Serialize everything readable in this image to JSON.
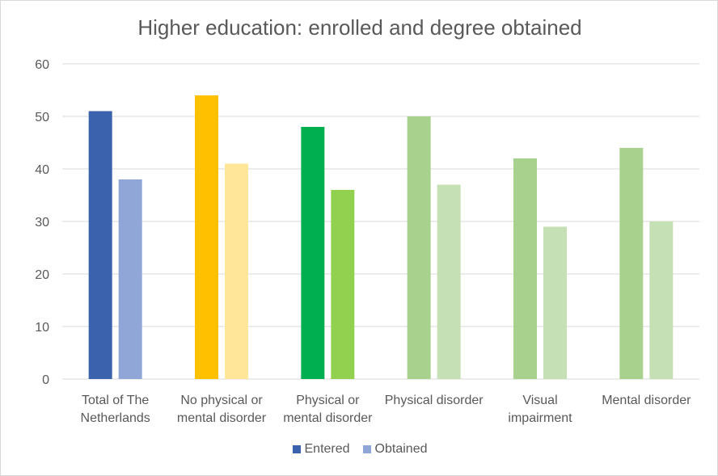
{
  "chart_data": {
    "type": "bar",
    "title": "Higher education: enrolled and degree obtained",
    "xlabel": "",
    "ylabel": "",
    "ylim": [
      0,
      60
    ],
    "yticks": [
      0,
      10,
      20,
      30,
      40,
      50,
      60
    ],
    "grid": true,
    "legend_position": "bottom",
    "categories": [
      [
        "Total of The",
        "Netherlands"
      ],
      [
        "No physical or",
        "mental disorder"
      ],
      [
        "Physical or",
        "mental disorder"
      ],
      [
        "Physical disorder"
      ],
      [
        "Visual",
        "impairment"
      ],
      [
        "Mental disorder"
      ]
    ],
    "series": [
      {
        "name": "Entered",
        "values": [
          51,
          54,
          48,
          50,
          42,
          44
        ],
        "colors": [
          "#3b62ad",
          "#ffc000",
          "#00b050",
          "#a9d18e",
          "#a9d18e",
          "#a9d18e"
        ]
      },
      {
        "name": "Obtained",
        "values": [
          38,
          41,
          36,
          37,
          29,
          30
        ],
        "colors": [
          "#8fa6d6",
          "#ffe699",
          "#92d050",
          "#c5e0b4",
          "#c5e0b4",
          "#c5e0b4"
        ]
      }
    ]
  }
}
